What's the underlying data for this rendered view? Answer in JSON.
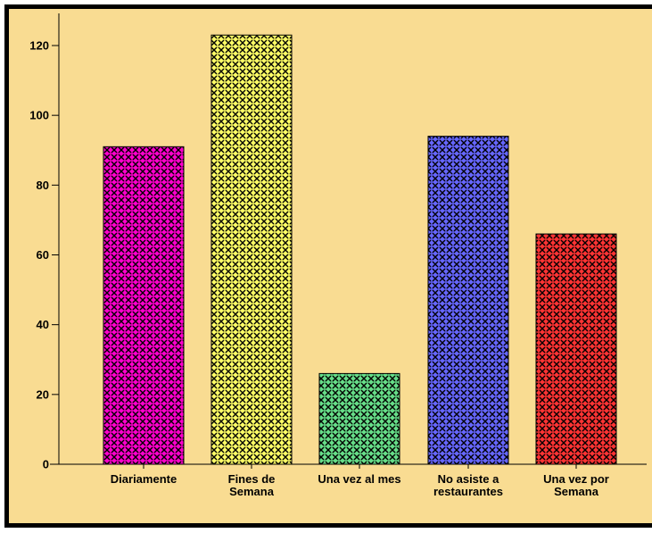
{
  "chart_data": {
    "type": "bar",
    "categories": [
      [
        "Diariamente"
      ],
      [
        "Fines de",
        "Semana"
      ],
      [
        "Una vez al mes"
      ],
      [
        "No asiste a",
        "restaurantes"
      ],
      [
        "Una vez por",
        "Semana"
      ]
    ],
    "values": [
      91,
      123,
      26,
      94,
      66
    ],
    "bar_colors": [
      "#ff00cc",
      "#ffff66",
      "#66dd88",
      "#6666ff",
      "#ff3333"
    ],
    "ylim": [
      0,
      120
    ],
    "yticks": [
      0,
      20,
      40,
      60,
      80,
      100,
      120
    ],
    "title": "",
    "xlabel": "",
    "ylabel": "",
    "grid": false,
    "legend": "none",
    "background": "#f9dc92",
    "pattern": "cross-hatch"
  }
}
